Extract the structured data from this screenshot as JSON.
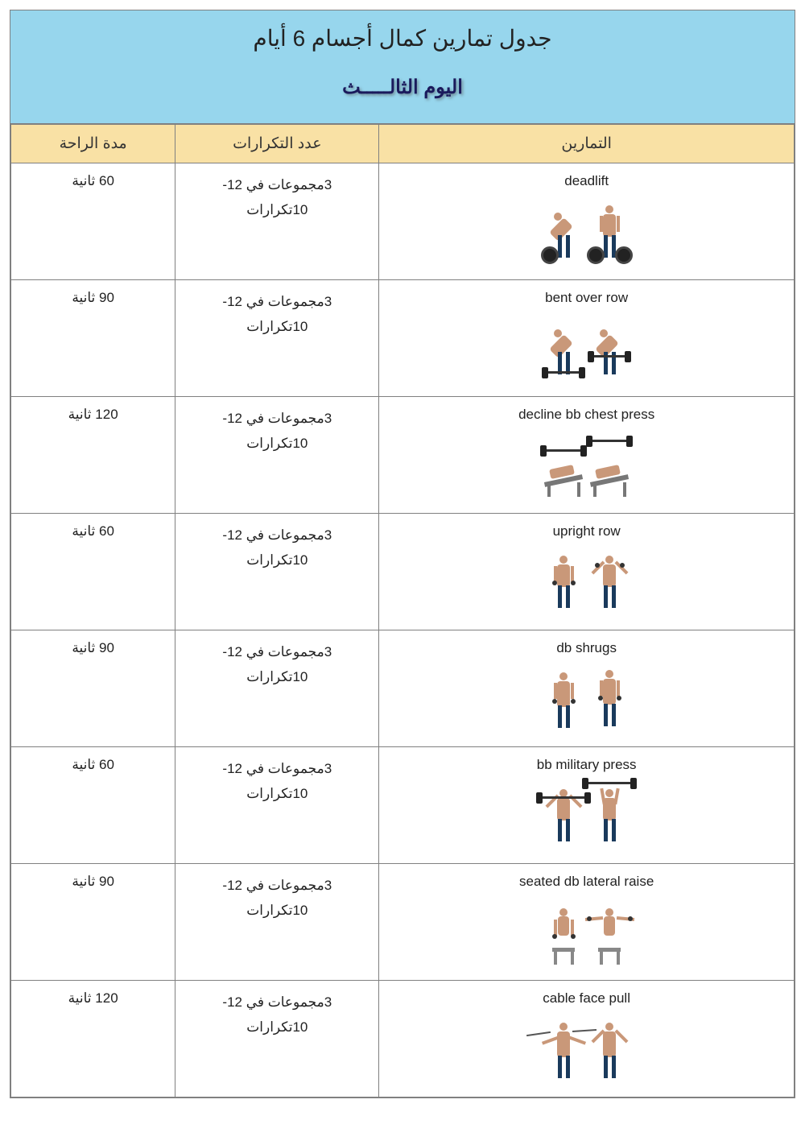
{
  "title": "جدول تمارين كمال أجسام 6 أيام",
  "subtitle": "اليوم الثالـــــث",
  "columns": {
    "rest": "مدة الراحة",
    "reps": "عدد التكرارات",
    "exercise": "التمارين"
  },
  "styling": {
    "header_bg": "#97d6ed",
    "column_header_bg": "#f9e1a5",
    "border_color": "#808080",
    "subtitle_color": "#1a1a5c",
    "text_color": "#222222",
    "title_fontsize": 28,
    "subtitle_fontsize": 24,
    "header_fontsize": 19,
    "cell_fontsize": 17,
    "col_widths_pct": [
      21,
      26,
      53
    ]
  },
  "reps_line1": "3مجموعات في 12-",
  "reps_line2": "10تكرارات",
  "rows": [
    {
      "name": "deadlift",
      "rest": "60 ثانية",
      "figure": "deadlift"
    },
    {
      "name": "bent over row",
      "rest": "90 ثانية",
      "figure": "bentrow"
    },
    {
      "name": "decline bb chest press",
      "rest": "120 ثانية",
      "figure": "decline"
    },
    {
      "name": "upright row",
      "rest": "60 ثانية",
      "figure": "upright"
    },
    {
      "name": "db shrugs",
      "rest": "90 ثانية",
      "figure": "shrugs"
    },
    {
      "name": "bb military press",
      "rest": "60 ثانية",
      "figure": "military"
    },
    {
      "name": "seated db lateral raise",
      "rest": "90 ثانية",
      "figure": "lateral"
    },
    {
      "name": "cable face pull",
      "rest": "120 ثانية",
      "figure": "facepull"
    }
  ]
}
